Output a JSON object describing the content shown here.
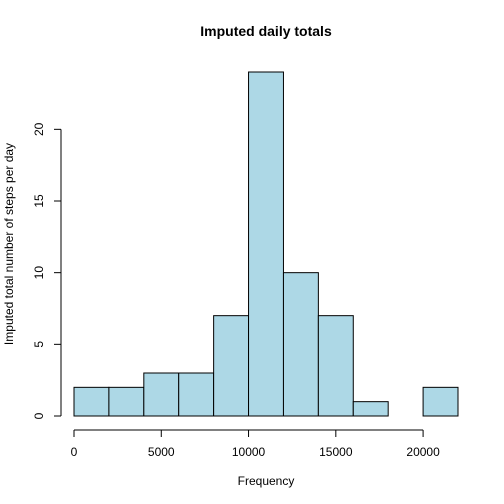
{
  "chart_data": {
    "type": "bar",
    "title": "Imputed daily totals",
    "xlabel": "Frequency",
    "ylabel": "Imputed total number of steps per day",
    "bin_edges": [
      0,
      2000,
      4000,
      6000,
      8000,
      10000,
      12000,
      14000,
      16000,
      18000,
      20000,
      22000
    ],
    "values": [
      2,
      2,
      3,
      3,
      7,
      24,
      10,
      7,
      1,
      0,
      2
    ],
    "xlim": [
      0,
      22000
    ],
    "ylim": [
      0,
      24
    ],
    "x_ticks": [
      0,
      5000,
      10000,
      15000,
      20000
    ],
    "x_tick_labels": [
      "0",
      "5000",
      "10000",
      "15000",
      "20000"
    ],
    "y_ticks": [
      0,
      5,
      10,
      15,
      20
    ],
    "y_tick_labels": [
      "0",
      "5",
      "10",
      "15",
      "20"
    ],
    "bar_color": "#ADD8E6",
    "grid": false
  }
}
